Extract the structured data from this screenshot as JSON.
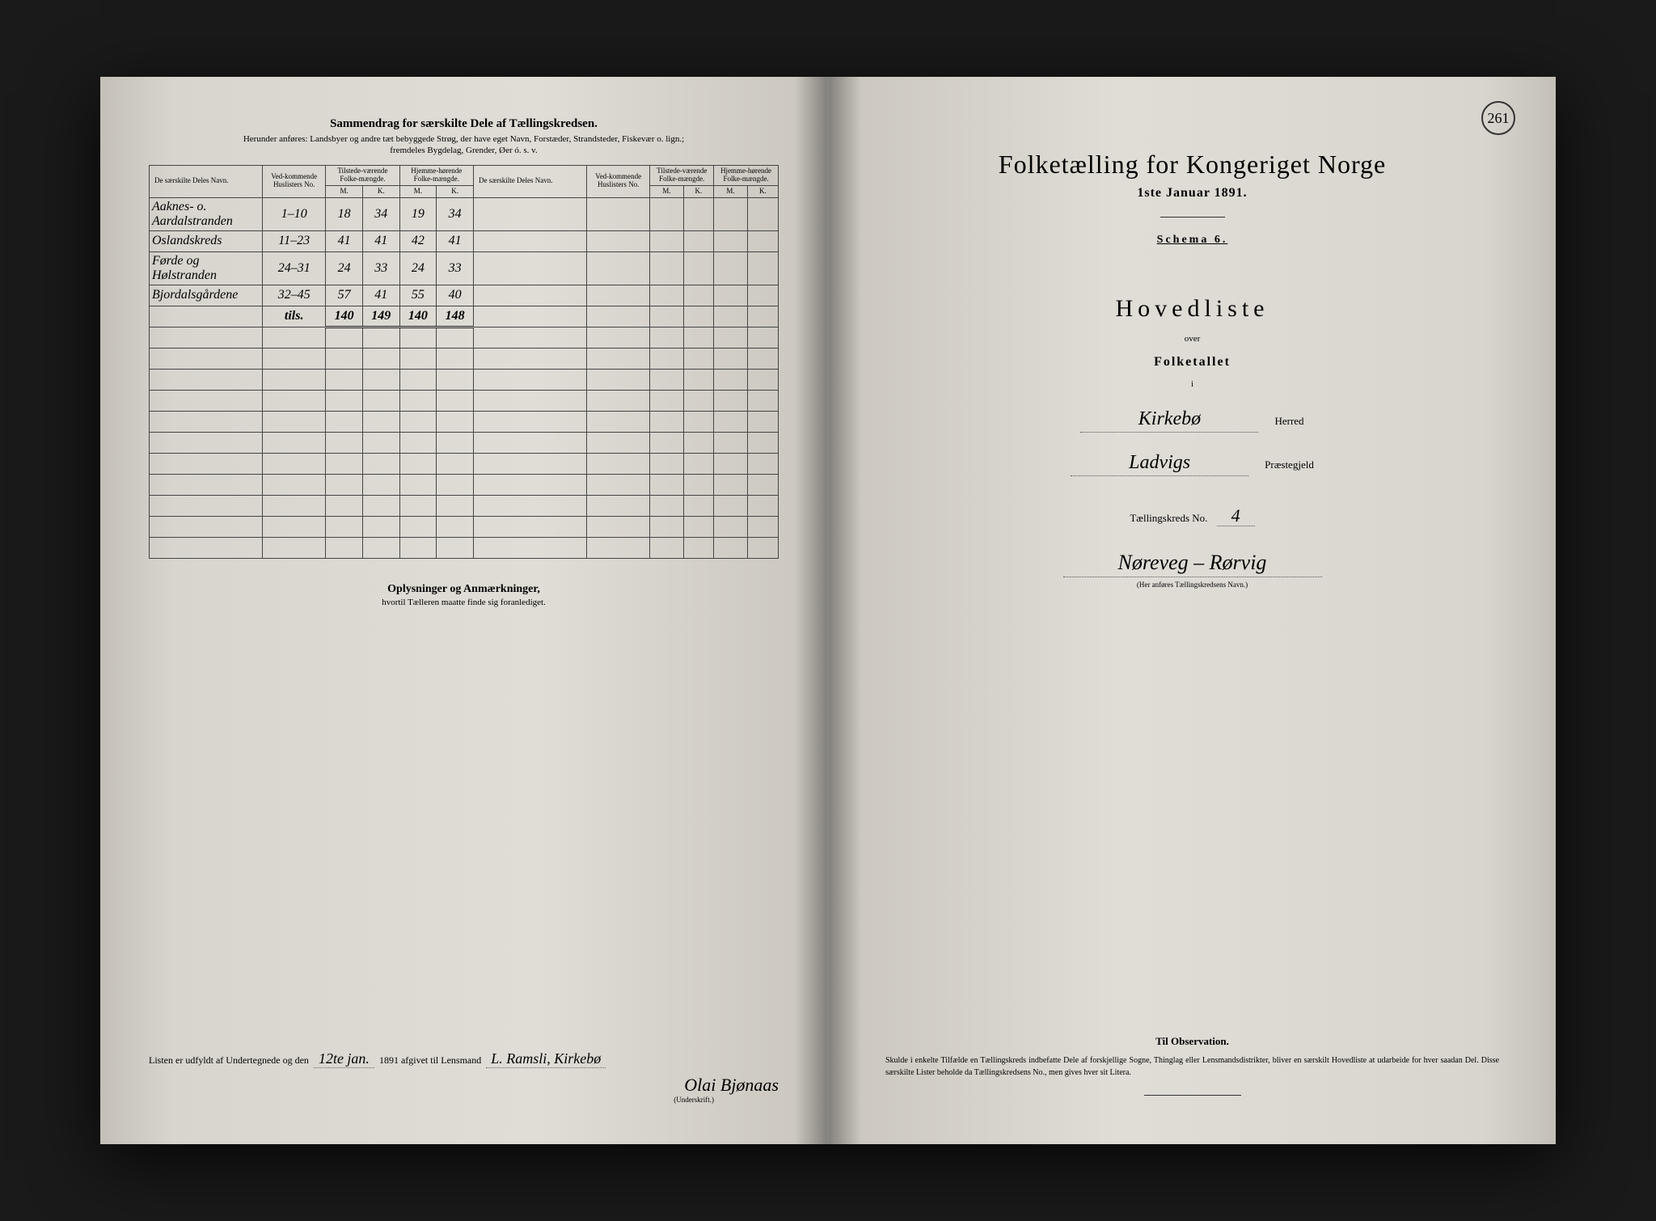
{
  "left": {
    "title": "Sammendrag for særskilte Dele af Tællingskredsen.",
    "subtitle1": "Herunder anføres: Landsbyer og andre tæt bebyggede Strøg, der have eget Navn, Forstæder, Strandsteder, Fiskevær o. lign.;",
    "subtitle2": "fremdeles Bygdelag, Grender, Øer ó. s. v.",
    "headers": {
      "name": "De særskilte Deles Navn.",
      "huslister": "Ved-kommende Huslisters No.",
      "tilstede": "Tilstede-værende Folke-mængde.",
      "hjemme": "Hjemme-hørende Folke-mængde.",
      "m": "M.",
      "k": "K."
    },
    "rows": [
      {
        "name": "Aaknes- o. Aardalstranden",
        "husl": "1–10",
        "tm": "18",
        "tk": "34",
        "hm": "19",
        "hk": "34"
      },
      {
        "name": "Oslandskreds",
        "husl": "11–23",
        "tm": "41",
        "tk": "41",
        "hm": "42",
        "hk": "41"
      },
      {
        "name": "Førde og Hølstranden",
        "husl": "24–31",
        "tm": "24",
        "tk": "33",
        "hm": "24",
        "hk": "33"
      },
      {
        "name": "Bjordalsgårdene",
        "husl": "32–45",
        "tm": "57",
        "tk": "41",
        "hm": "55",
        "hk": "40"
      }
    ],
    "totals": {
      "label": "tils.",
      "tm": "140",
      "tk": "149",
      "hm": "140",
      "hk": "148"
    },
    "notes_title": "Oplysninger og Anmærkninger,",
    "notes_sub": "hvortil Tælleren maatte finde sig foranlediget.",
    "sig_prefix": "Listen er udfyldt af Undertegnede og den",
    "sig_date": "12te jan.",
    "sig_mid": "1891 afgivet til Lensmand",
    "sig_lensmand": "L. Ramsli, Kirkebø",
    "sig_name": "Olai Bjønaas",
    "sig_label": "(Underskrift.)"
  },
  "right": {
    "page_no": "261",
    "title": "Folketælling for Kongeriget Norge",
    "date": "1ste Januar 1891.",
    "schema": "Schema 6.",
    "hovedliste": "Hovedliste",
    "over": "over",
    "folketallet": "Folketallet",
    "i": "i",
    "herred": "Kirkebø",
    "herred_label": "Herred",
    "praestegjeld": "Ladvigs",
    "praestegjeld_label": "Præstegjeld",
    "kreds_label": "Tællingskreds No.",
    "kreds_no": "4",
    "kreds_name": "Nøreveg – Rørvig",
    "kreds_caption": "(Her anføres Tællingskredsens Navn.)",
    "obs_title": "Til Observation.",
    "obs_text": "Skulde i enkelte Tilfælde en Tællingskreds indbefatte Dele af forskjellige Sogne, Thinglag eller Lensmandsdistrikter, bliver en særskilt Hovedliste at udarbeide for hver saadan Del. Disse særskilte Lister beholde da Tællingskredsens No., men gives hver sit Litera."
  }
}
